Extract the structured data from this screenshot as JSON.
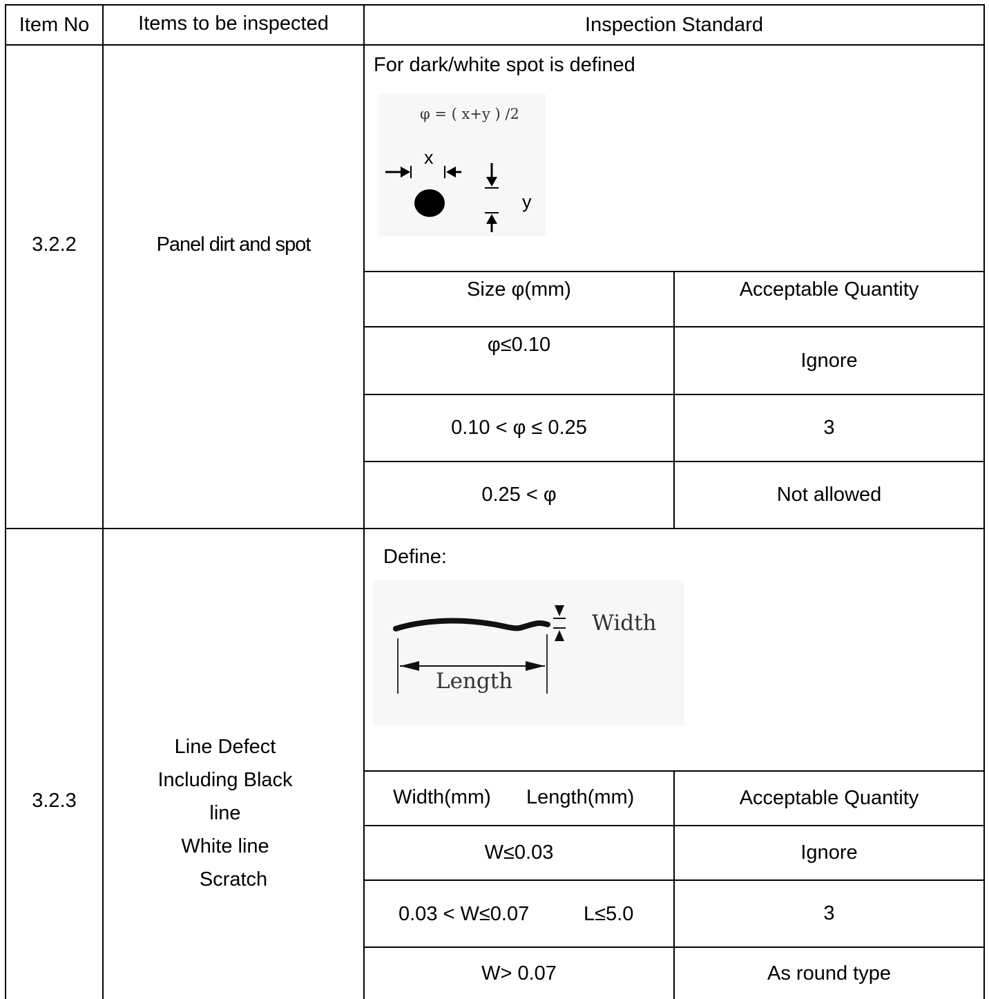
{
  "header": {
    "item_no": "Item No",
    "items_inspected": "Items to be inspected",
    "inspection_standard": "Inspection Standard"
  },
  "row_322": {
    "item_no": "3.2.2",
    "item_name": "Panel dirt and spot",
    "definition": "For dark/white spot is defined",
    "figure": {
      "formula": "φ = ( x+y ) ∕2",
      "x_label": "x",
      "y_label": "y"
    },
    "table_headers": {
      "size": "Size φ(mm)",
      "quantity": "Acceptable Quantity"
    },
    "rows": [
      {
        "size": "φ≤0.10",
        "quantity": "Ignore"
      },
      {
        "size": "0.10 < φ ≤ 0.25",
        "quantity": "3"
      },
      {
        "size": "0.25 < φ",
        "quantity": "Not allowed"
      }
    ]
  },
  "row_323": {
    "item_no": "3.2.3",
    "item_name_lines": [
      "Line Defect",
      "Including Black",
      "line",
      "White line",
      "Scratch"
    ],
    "definition": "Define:",
    "figure": {
      "width_label": "Width",
      "length_label": "Length"
    },
    "table_headers": {
      "width": "Width(mm)",
      "length": "Length(mm)",
      "quantity": "Acceptable Quantity"
    },
    "rows": [
      {
        "width": "W≤0.03",
        "length": "",
        "quantity": "Ignore"
      },
      {
        "width": "0.03 < W≤0.07",
        "length": "L≤5.0",
        "quantity": "3"
      },
      {
        "width": "W> 0.07",
        "length": "",
        "quantity": "As round type"
      }
    ]
  }
}
